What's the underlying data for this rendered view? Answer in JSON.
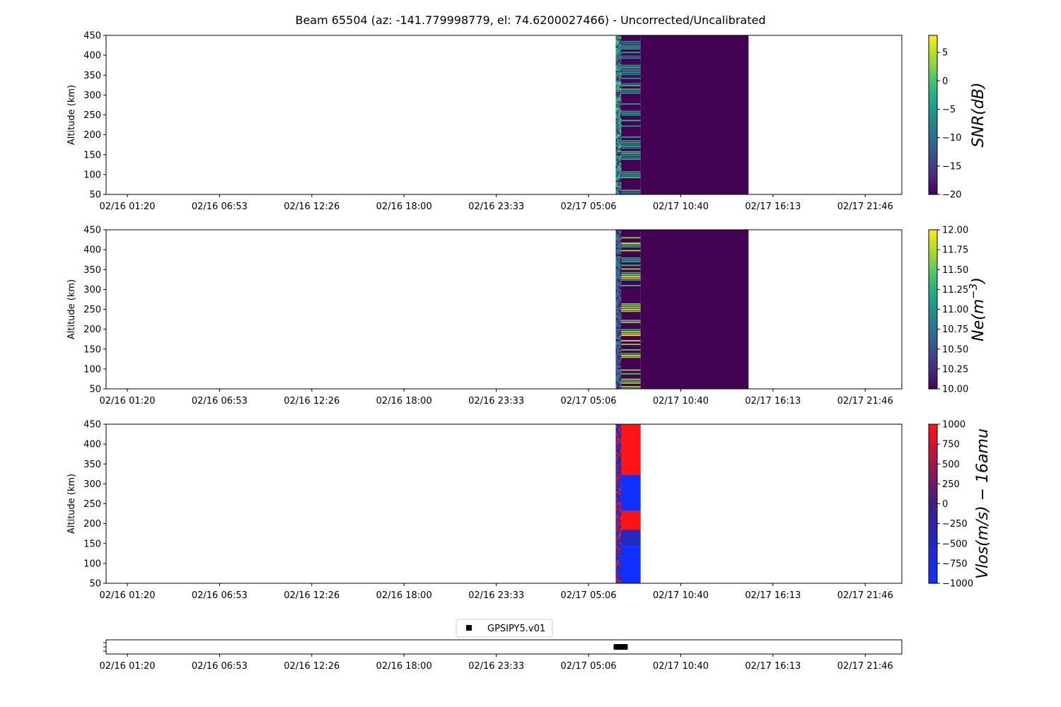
{
  "figure": {
    "title": "Beam 65504 (az: -141.779998779, el: 74.6200027466) - Uncorrected/Uncalibrated"
  },
  "chart_data": [
    {
      "type": "heatmap",
      "id": "snr",
      "ylabel": "Altitude (km)",
      "ylim": [
        50,
        450
      ],
      "yticks": [
        50,
        100,
        150,
        200,
        250,
        300,
        350,
        400,
        450
      ],
      "xticklabels": [
        "02/16 01:20",
        "02/16 06:53",
        "02/16 12:26",
        "02/16 18:00",
        "02/16 23:33",
        "02/17 05:06",
        "02/17 10:40",
        "02/17 16:13",
        "02/17 21:46"
      ],
      "colorbar": {
        "label": "SNR(dB)",
        "label_main": "SNR(dB)",
        "colormap": "viridis",
        "min": -20,
        "max": 8,
        "ticks": [
          -20,
          -15,
          -10,
          -5,
          0,
          5
        ]
      },
      "data_segments": [
        {
          "x_start": "02/17 06:45",
          "x_end": "02/17 07:05",
          "pattern": "noisy",
          "value_range": [
            -20,
            2
          ]
        },
        {
          "x_start": "02/17 07:05",
          "x_end": "02/17 08:15",
          "pattern": "striped",
          "value_range": [
            -20,
            0
          ]
        },
        {
          "x_start": "02/17 08:15",
          "x_end": "02/17 14:45",
          "pattern": "uniform",
          "value": -20
        }
      ]
    },
    {
      "type": "heatmap",
      "id": "ne",
      "ylabel": "Altitude (km)",
      "ylim": [
        50,
        450
      ],
      "yticks": [
        50,
        100,
        150,
        200,
        250,
        300,
        350,
        400,
        450
      ],
      "xticklabels": [
        "02/16 01:20",
        "02/16 06:53",
        "02/16 12:26",
        "02/16 18:00",
        "02/16 23:33",
        "02/17 05:06",
        "02/17 10:40",
        "02/17 16:13",
        "02/17 21:46"
      ],
      "colorbar": {
        "label": "Ne(m^-3)",
        "label_main": "Ne(m",
        "label_sup": "−3",
        "label_end": ")",
        "colormap": "viridis",
        "min": 10.0,
        "max": 12.0,
        "ticks": [
          "10.00",
          "10.25",
          "10.50",
          "10.75",
          "11.00",
          "11.25",
          "11.50",
          "11.75",
          "12.00"
        ]
      },
      "data_segments": [
        {
          "x_start": "02/17 06:45",
          "x_end": "02/17 07:05",
          "pattern": "noisy",
          "value_range": [
            10.0,
            11.0
          ]
        },
        {
          "x_start": "02/17 07:05",
          "x_end": "02/17 08:15",
          "pattern": "striped",
          "value_range": [
            10.0,
            12.0
          ]
        },
        {
          "x_start": "02/17 08:15",
          "x_end": "02/17 14:45",
          "pattern": "uniform",
          "value": 10.0
        }
      ]
    },
    {
      "type": "heatmap",
      "id": "vlos",
      "ylabel": "Altitude (km)",
      "ylim": [
        50,
        450
      ],
      "yticks": [
        50,
        100,
        150,
        200,
        250,
        300,
        350,
        400,
        450
      ],
      "xticklabels": [
        "02/16 01:20",
        "02/16 06:53",
        "02/16 12:26",
        "02/16 18:00",
        "02/16 23:33",
        "02/17 05:06",
        "02/17 10:40",
        "02/17 16:13",
        "02/17 21:46"
      ],
      "colorbar": {
        "label": "Vlos(m/s) − 16amu",
        "label_main": "Vlos(m/s) − 16amu",
        "colormap": "bwr_dark",
        "min": -1000,
        "max": 1000,
        "ticks": [
          -1000,
          -750,
          -500,
          -250,
          0,
          250,
          500,
          750,
          1000
        ]
      },
      "data_segments": [
        {
          "x_start": "02/17 06:45",
          "x_end": "02/17 07:05",
          "pattern": "noisy",
          "value_range": [
            -1000,
            1000
          ]
        },
        {
          "x_start": "02/17 07:05",
          "x_end": "02/17 08:15",
          "pattern": "blocks",
          "blocks": [
            {
              "alt_min": 50,
              "alt_max": 145,
              "value": -1000
            },
            {
              "alt_min": 145,
              "alt_max": 185,
              "value": -500
            },
            {
              "alt_min": 185,
              "alt_max": 232,
              "value": 1000
            },
            {
              "alt_min": 232,
              "alt_max": 322,
              "value": -1000
            },
            {
              "alt_min": 322,
              "alt_max": 450,
              "value": 1000
            }
          ]
        }
      ]
    },
    {
      "type": "scatter",
      "id": "instrument",
      "xticklabels": [
        "02/16 01:20",
        "02/16 06:53",
        "02/16 12:26",
        "02/16 18:00",
        "02/16 23:33",
        "02/17 05:06",
        "02/17 10:40",
        "02/17 16:13",
        "02/17 21:46"
      ],
      "legend": {
        "label": "GPSIPY5.v01",
        "placement": "top-center"
      },
      "series": [
        {
          "name": "GPSIPY5.v01",
          "x_start": "02/17 06:45",
          "x_end": "02/17 07:25",
          "marker": "square",
          "color": "#000000"
        }
      ]
    }
  ]
}
